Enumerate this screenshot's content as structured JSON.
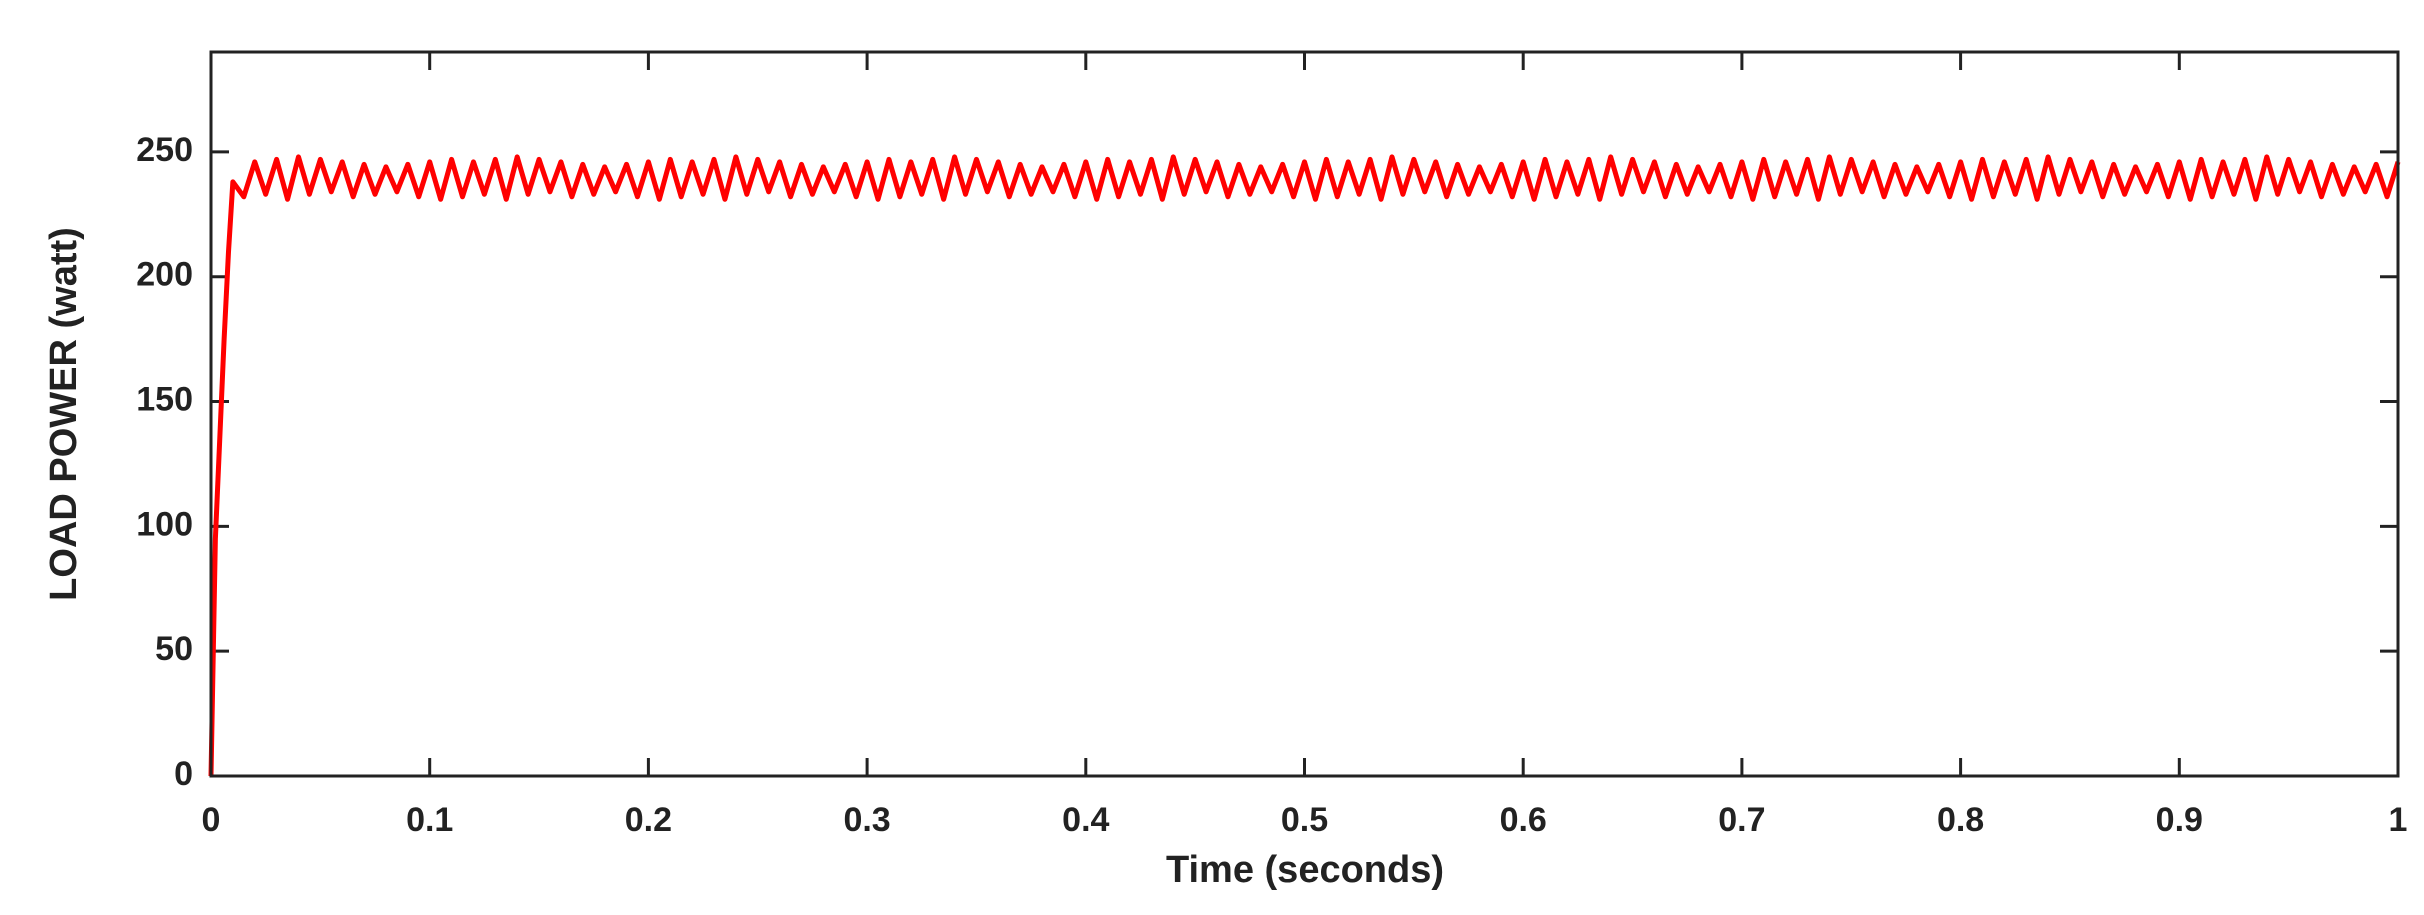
{
  "chart_data": {
    "type": "line",
    "xlabel": "Time (seconds)",
    "ylabel": "LOAD POWER (watt)",
    "color": "#ff0000",
    "xlim": [
      0,
      1
    ],
    "xticks": [
      0,
      0.1,
      0.2,
      0.3,
      0.4,
      0.5,
      0.6,
      0.7,
      0.8,
      0.9,
      1
    ],
    "ylim": [
      0,
      290
    ],
    "yticks": [
      0,
      50,
      100,
      150,
      200,
      250
    ],
    "x": [
      0,
      0.002,
      0.004,
      0.006,
      0.008,
      0.01,
      0.015,
      0.02,
      0.025,
      0.03,
      0.035,
      0.04,
      0.045,
      0.05,
      0.055,
      0.06,
      0.065,
      0.07,
      0.075,
      0.08,
      0.085,
      0.09,
      0.095,
      0.1,
      0.105,
      0.11,
      0.115,
      0.12,
      0.125,
      0.13,
      0.135,
      0.14,
      0.145,
      0.15,
      0.155,
      0.16,
      0.165,
      0.17,
      0.175,
      0.18,
      0.185,
      0.19,
      0.195,
      0.2,
      0.205,
      0.21,
      0.215,
      0.22,
      0.225,
      0.23,
      0.235,
      0.24,
      0.245,
      0.25,
      0.255,
      0.26,
      0.265,
      0.27,
      0.275,
      0.28,
      0.285,
      0.29,
      0.295,
      0.3,
      0.305,
      0.31,
      0.315,
      0.32,
      0.325,
      0.33,
      0.335,
      0.34,
      0.345,
      0.35,
      0.355,
      0.36,
      0.365,
      0.37,
      0.375,
      0.38,
      0.385,
      0.39,
      0.395,
      0.4,
      0.405,
      0.41,
      0.415,
      0.42,
      0.425,
      0.43,
      0.435,
      0.44,
      0.445,
      0.45,
      0.455,
      0.46,
      0.465,
      0.47,
      0.475,
      0.48,
      0.485,
      0.49,
      0.495,
      0.5,
      0.505,
      0.51,
      0.515,
      0.52,
      0.525,
      0.53,
      0.535,
      0.54,
      0.545,
      0.55,
      0.555,
      0.56,
      0.565,
      0.57,
      0.575,
      0.58,
      0.585,
      0.59,
      0.595,
      0.6,
      0.605,
      0.61,
      0.615,
      0.62,
      0.625,
      0.63,
      0.635,
      0.64,
      0.645,
      0.65,
      0.655,
      0.66,
      0.665,
      0.67,
      0.675,
      0.68,
      0.685,
      0.69,
      0.695,
      0.7,
      0.705,
      0.71,
      0.715,
      0.72,
      0.725,
      0.73,
      0.735,
      0.74,
      0.745,
      0.75,
      0.755,
      0.76,
      0.765,
      0.77,
      0.775,
      0.78,
      0.785,
      0.79,
      0.795,
      0.8,
      0.805,
      0.81,
      0.815,
      0.82,
      0.825,
      0.83,
      0.835,
      0.84,
      0.845,
      0.85,
      0.855,
      0.86,
      0.865,
      0.87,
      0.875,
      0.88,
      0.885,
      0.89,
      0.895,
      0.9,
      0.905,
      0.91,
      0.915,
      0.92,
      0.925,
      0.93,
      0.935,
      0.94,
      0.945,
      0.95,
      0.955,
      0.96,
      0.965,
      0.97,
      0.975,
      0.98,
      0.985,
      0.99,
      0.995,
      1
    ],
    "values": [
      0,
      95,
      135,
      175,
      210,
      238,
      232,
      246,
      233,
      247,
      231,
      248,
      233,
      247,
      234,
      246,
      232,
      245,
      233,
      244,
      234,
      245,
      232,
      246,
      231,
      247,
      232,
      246,
      233,
      247,
      231,
      248,
      233,
      247,
      234,
      246,
      232,
      245,
      233,
      244,
      234,
      245,
      232,
      246,
      231,
      247,
      232,
      246,
      233,
      247,
      231,
      248,
      233,
      247,
      234,
      246,
      232,
      245,
      233,
      244,
      234,
      245,
      232,
      246,
      231,
      247,
      232,
      246,
      233,
      247,
      231,
      248,
      233,
      247,
      234,
      246,
      232,
      245,
      233,
      244,
      234,
      245,
      232,
      246,
      231,
      247,
      232,
      246,
      233,
      247,
      231,
      248,
      233,
      247,
      234,
      246,
      232,
      245,
      233,
      244,
      234,
      245,
      232,
      246,
      231,
      247,
      232,
      246,
      233,
      247,
      231,
      248,
      233,
      247,
      234,
      246,
      232,
      245,
      233,
      244,
      234,
      245,
      232,
      246,
      231,
      247,
      232,
      246,
      233,
      247,
      231,
      248,
      233,
      247,
      234,
      246,
      232,
      245,
      233,
      244,
      234,
      245,
      232,
      246,
      231,
      247,
      232,
      246,
      233,
      247,
      231,
      248,
      233,
      247,
      234,
      246,
      232,
      245,
      233,
      244,
      234,
      245,
      232,
      246,
      231,
      247,
      232,
      246,
      233,
      247,
      231,
      248,
      233,
      247,
      234,
      246,
      232,
      245,
      233,
      244,
      234,
      245,
      232,
      246,
      231,
      247,
      232,
      246,
      233,
      247,
      231,
      248,
      233,
      247,
      234,
      246,
      232,
      245,
      233,
      244,
      234,
      245,
      232,
      246
    ]
  }
}
